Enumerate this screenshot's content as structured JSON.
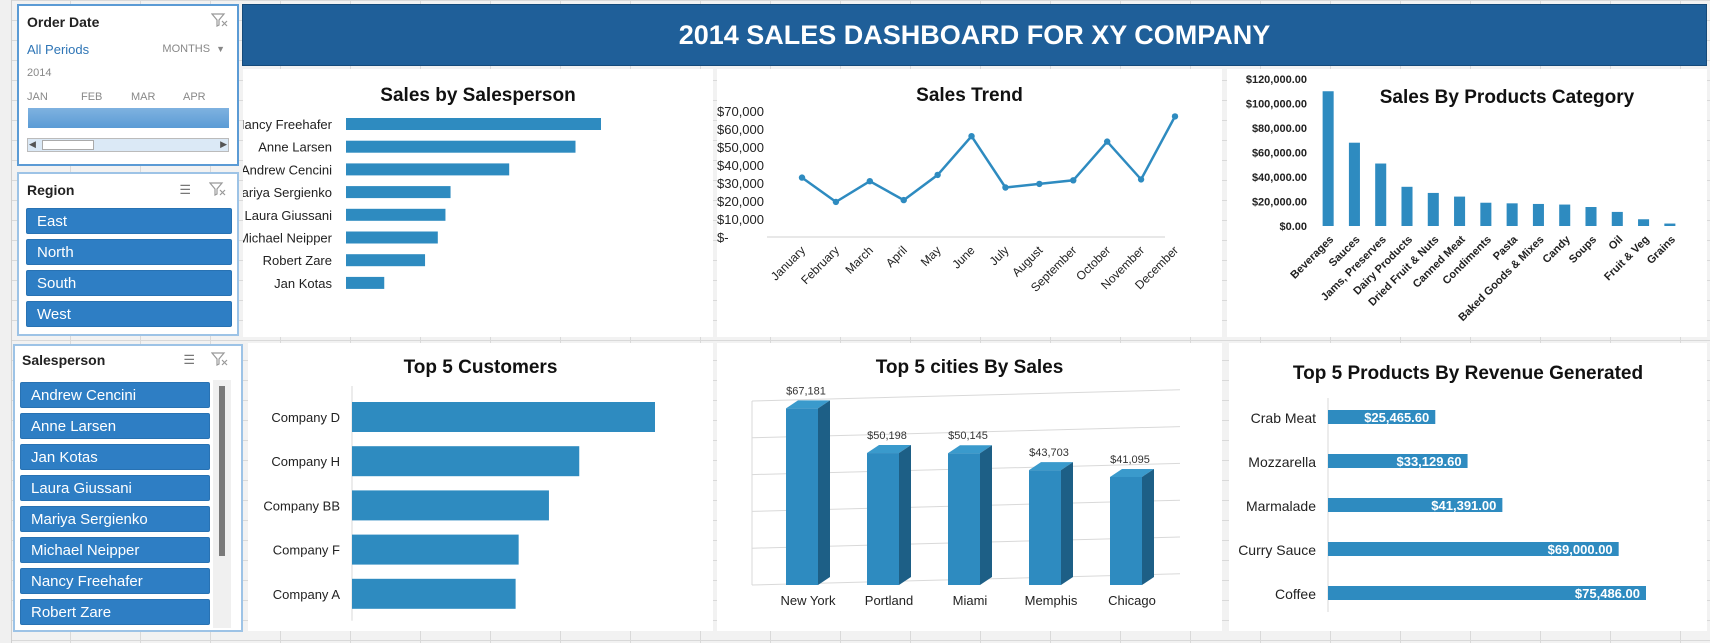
{
  "dashboard_title": "2014 SALES DASHBOARD FOR XY COMPANY",
  "order_date_slicer": {
    "title": "Order Date",
    "period_label": "All Periods",
    "granularity": "MONTHS",
    "year": "2014",
    "months": [
      "JAN",
      "FEB",
      "MAR",
      "APR"
    ]
  },
  "region_slicer": {
    "title": "Region",
    "items": [
      "East",
      "North",
      "South",
      "West"
    ]
  },
  "salesperson_slicer": {
    "title": "Salesperson",
    "items": [
      "Andrew Cencini",
      "Anne Larsen",
      "Jan Kotas",
      "Laura Giussani",
      "Mariya Sergienko",
      "Michael Neipper",
      "Nancy Freehafer",
      "Robert Zare"
    ]
  },
  "colors": {
    "accent": "#2e8bc0",
    "banner": "#1f5f99",
    "slicer_button": "#2e7ec4",
    "bar_dark": "#1d5f86"
  },
  "chart_data": [
    {
      "type": "bar",
      "title": "Sales by Salesperson",
      "orientation": "horizontal",
      "categories": [
        "Nancy Freehafer",
        "Anne Larsen",
        "Andrew Cencini",
        "Mariya Sergienko",
        "Laura Giussani",
        "Michael Neipper",
        "Robert Zare",
        "Jan Kotas"
      ],
      "values": [
        100,
        90,
        64,
        41,
        39,
        36,
        31,
        15
      ]
    },
    {
      "type": "line",
      "title": "Sales Trend",
      "categories": [
        "January",
        "February",
        "March",
        "April",
        "May",
        "June",
        "July",
        "August",
        "September",
        "October",
        "November",
        "December"
      ],
      "values": [
        33000,
        19500,
        31000,
        20500,
        34500,
        56000,
        27500,
        29500,
        31500,
        53000,
        32000,
        67000
      ],
      "ylim": [
        0,
        70000
      ],
      "yticks": [
        "$70,000",
        "$60,000",
        "$50,000",
        "$40,000",
        "$30,000",
        "$20,000",
        "$10,000",
        "$-"
      ]
    },
    {
      "type": "bar",
      "title": "Sales By Products Category",
      "categories": [
        "Beverages",
        "Sauces",
        "Jams, Preserves",
        "Dairy Products",
        "Dried Fruit & Nuts",
        "Canned Meat",
        "Condiments",
        "Pasta",
        "Baked Goods & Mixes",
        "Candy",
        "Soups",
        "Oil",
        "Fruit & Veg",
        "Grains"
      ],
      "values": [
        110000,
        68000,
        51000,
        32000,
        27000,
        24000,
        19000,
        18500,
        18000,
        17500,
        15500,
        11500,
        5500,
        2000
      ],
      "ylim": [
        0,
        120000
      ],
      "yticks": [
        "$120,000.00",
        "$100,000.00",
        "$80,000.00",
        "$60,000.00",
        "$40,000.00",
        "$20,000.00",
        "$0.00"
      ]
    },
    {
      "type": "bar",
      "title": "Top 5 Customers",
      "orientation": "horizontal",
      "categories": [
        "Company D",
        "Company H",
        "Company BB",
        "Company F",
        "Company A"
      ],
      "values": [
        100,
        75,
        65,
        55,
        54
      ]
    },
    {
      "type": "bar",
      "title": "Top 5 cities By Sales",
      "categories": [
        "New York",
        "Portland",
        "Miami",
        "Memphis",
        "Chicago"
      ],
      "values": [
        67181,
        50198,
        50145,
        43703,
        41095
      ],
      "labels": [
        "$67,181",
        "$50,198",
        "$50,145",
        "$43,703",
        "$41,095"
      ]
    },
    {
      "type": "bar",
      "title": "Top 5 Products By Revenue Generated",
      "orientation": "horizontal",
      "categories": [
        "Crab Meat",
        "Mozzarella",
        "Marmalade",
        "Curry Sauce",
        "Coffee"
      ],
      "values": [
        25465.6,
        33129.6,
        41391.0,
        69000.0,
        75486.0
      ],
      "labels": [
        "$25,465.60",
        "$33,129.60",
        "$41,391.00",
        "$69,000.00",
        "$75,486.00"
      ]
    }
  ]
}
